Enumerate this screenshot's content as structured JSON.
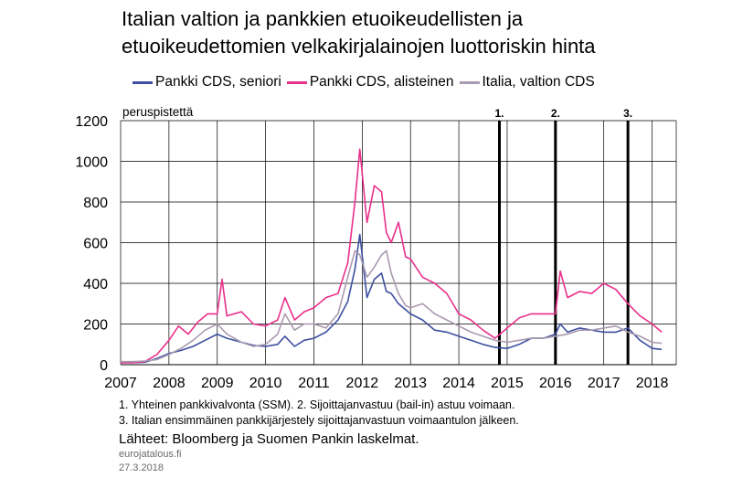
{
  "title": {
    "line1": "Italian valtion ja pankkien etuoikeudellisten ja",
    "line2": "etuoikeudettomien velkakirjalainojen luottoriskin hinta"
  },
  "notes": {
    "line1": "1. Yhteinen pankkivalvonta (SSM). 2. Sijoittajanvastuu (bail-in) astuu voimaan.",
    "line2": "3. Italian ensimmäinen pankkijärjestely sijoittajanvastuun voimaantulon jälkeen."
  },
  "sources": "Lähteet: Bloomberg ja Suomen Pankin laskelmat.",
  "site": "eurojatalous.fi",
  "date": "27.3.2018",
  "chart_data": {
    "type": "line",
    "ylabel": "peruspistettä",
    "ylim": [
      0,
      1200
    ],
    "yticks": [
      "0",
      "200",
      "400",
      "600",
      "800",
      "1000",
      "1200"
    ],
    "xlim": [
      2007,
      2018.5
    ],
    "xticks": [
      "2007",
      "2008",
      "2009",
      "2010",
      "2011",
      "2012",
      "2013",
      "2014",
      "2015",
      "2016",
      "2017",
      "2018"
    ],
    "grid": true,
    "legend_position": "top",
    "event_lines": [
      {
        "label": "1.",
        "x": 2014.84
      },
      {
        "label": "2.",
        "x": 2016.0
      },
      {
        "label": "3.",
        "x": 2017.5
      }
    ],
    "series": [
      {
        "name": "Pankki CDS, seniori",
        "color": "#3d4fa0",
        "x": [
          2007.0,
          2007.25,
          2007.5,
          2007.75,
          2008.0,
          2008.25,
          2008.5,
          2008.75,
          2009.0,
          2009.2,
          2009.5,
          2009.75,
          2010.0,
          2010.25,
          2010.4,
          2010.6,
          2010.8,
          2011.0,
          2011.25,
          2011.5,
          2011.7,
          2011.85,
          2011.95,
          2012.1,
          2012.25,
          2012.4,
          2012.5,
          2012.6,
          2012.75,
          2012.9,
          2013.0,
          2013.25,
          2013.5,
          2013.75,
          2014.0,
          2014.25,
          2014.5,
          2014.75,
          2015.0,
          2015.25,
          2015.5,
          2015.75,
          2016.0,
          2016.1,
          2016.25,
          2016.5,
          2016.75,
          2017.0,
          2017.25,
          2017.5,
          2017.75,
          2018.0,
          2018.2
        ],
        "y": [
          10,
          10,
          12,
          30,
          55,
          70,
          90,
          120,
          150,
          130,
          110,
          95,
          90,
          100,
          140,
          90,
          120,
          130,
          160,
          220,
          310,
          470,
          640,
          330,
          420,
          450,
          360,
          350,
          300,
          270,
          250,
          220,
          170,
          160,
          140,
          120,
          100,
          85,
          80,
          100,
          130,
          130,
          150,
          200,
          160,
          180,
          170,
          160,
          160,
          180,
          120,
          80,
          75
        ]
      },
      {
        "name": "Pankki CDS, alisteinen",
        "color": "#e8308a",
        "x": [
          2007.0,
          2007.25,
          2007.5,
          2007.75,
          2008.0,
          2008.2,
          2008.4,
          2008.6,
          2008.8,
          2009.0,
          2009.1,
          2009.2,
          2009.5,
          2009.75,
          2010.0,
          2010.25,
          2010.4,
          2010.6,
          2010.8,
          2011.0,
          2011.25,
          2011.5,
          2011.7,
          2011.85,
          2011.95,
          2012.1,
          2012.25,
          2012.4,
          2012.5,
          2012.6,
          2012.75,
          2012.9,
          2013.0,
          2013.25,
          2013.5,
          2013.75,
          2014.0,
          2014.25,
          2014.5,
          2014.75,
          2015.0,
          2015.25,
          2015.5,
          2015.75,
          2016.0,
          2016.1,
          2016.25,
          2016.5,
          2016.75,
          2017.0,
          2017.25,
          2017.5,
          2017.75,
          2018.0,
          2018.2
        ],
        "y": [
          10,
          10,
          15,
          50,
          120,
          190,
          150,
          210,
          250,
          250,
          420,
          240,
          260,
          200,
          190,
          220,
          330,
          220,
          260,
          280,
          330,
          350,
          500,
          800,
          1060,
          700,
          880,
          850,
          650,
          600,
          700,
          530,
          520,
          430,
          400,
          350,
          250,
          220,
          170,
          130,
          180,
          230,
          250,
          250,
          250,
          460,
          330,
          360,
          350,
          400,
          370,
          300,
          240,
          200,
          160
        ]
      },
      {
        "name": "Italia, valtion CDS",
        "color": "#a99ab0",
        "x": [
          2007.0,
          2007.25,
          2007.5,
          2007.75,
          2008.0,
          2008.25,
          2008.5,
          2008.75,
          2009.0,
          2009.2,
          2009.5,
          2009.75,
          2010.0,
          2010.25,
          2010.4,
          2010.6,
          2010.8,
          2011.0,
          2011.25,
          2011.5,
          2011.7,
          2011.85,
          2011.95,
          2012.1,
          2012.25,
          2012.4,
          2012.5,
          2012.6,
          2012.75,
          2012.9,
          2013.0,
          2013.25,
          2013.5,
          2013.75,
          2014.0,
          2014.25,
          2014.5,
          2014.75,
          2015.0,
          2015.25,
          2015.5,
          2015.75,
          2016.0,
          2016.25,
          2016.5,
          2016.75,
          2017.0,
          2017.25,
          2017.5,
          2017.75,
          2018.0,
          2018.2
        ],
        "y": [
          15,
          15,
          18,
          25,
          50,
          80,
          120,
          170,
          200,
          150,
          110,
          90,
          100,
          150,
          250,
          170,
          200,
          200,
          180,
          250,
          430,
          560,
          540,
          430,
          480,
          540,
          560,
          450,
          350,
          290,
          280,
          300,
          250,
          220,
          190,
          160,
          140,
          120,
          110,
          120,
          130,
          130,
          140,
          150,
          170,
          170,
          180,
          190,
          160,
          140,
          110,
          105
        ]
      }
    ]
  }
}
